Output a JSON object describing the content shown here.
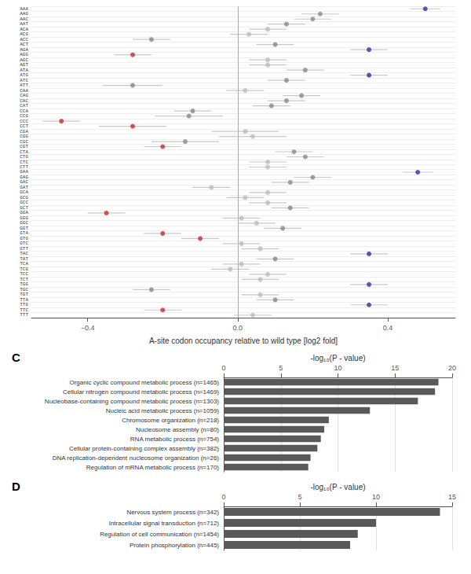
{
  "chart_data": [
    {
      "type": "scatter",
      "xlabel": "A-site codon occupancy relative to wild type [log2 fold]",
      "categories": [
        "AAA",
        "AAG",
        "AAC",
        "AAT",
        "ACA",
        "ACG",
        "ACC",
        "ACT",
        "AGA",
        "AGG",
        "AGC",
        "AGT",
        "ATA",
        "ATG",
        "ATC",
        "ATT",
        "CAA",
        "CAG",
        "CAC",
        "CAT",
        "CCA",
        "CCG",
        "CCC",
        "CCT",
        "CGA",
        "CGG",
        "CGC",
        "CGT",
        "CTA",
        "CTG",
        "CTC",
        "CTT",
        "GAA",
        "GAG",
        "GAC",
        "GAT",
        "GCA",
        "GCG",
        "GCC",
        "GCT",
        "GGA",
        "GGG",
        "GGC",
        "GGT",
        "GTA",
        "GTG",
        "GTC",
        "GTT",
        "TAC",
        "TAT",
        "TCA",
        "TCG",
        "TCC",
        "TCT",
        "TGG",
        "TGC",
        "TGT",
        "TTA",
        "TTG",
        "TTC",
        "TTT"
      ],
      "values": [
        0.5,
        0.22,
        0.2,
        0.13,
        0.08,
        0.03,
        -0.23,
        0.1,
        0.35,
        -0.28,
        0.08,
        0.08,
        0.18,
        0.35,
        0.13,
        -0.28,
        0.02,
        0.17,
        0.13,
        0.09,
        -0.12,
        -0.13,
        -0.47,
        -0.28,
        0.02,
        0.04,
        -0.14,
        -0.2,
        0.15,
        0.18,
        0.08,
        0.08,
        0.48,
        0.2,
        0.14,
        -0.07,
        0.08,
        0.02,
        0.08,
        0.14,
        -0.35,
        0.01,
        0.05,
        0.12,
        -0.2,
        -0.1,
        0.01,
        0.06,
        0.35,
        0.1,
        0.01,
        -0.02,
        0.08,
        0.06,
        0.35,
        -0.23,
        0.06,
        0.1,
        0.35,
        -0.2,
        0.04
      ],
      "errors": [
        0.04,
        0.05,
        0.05,
        0.05,
        0.05,
        0.05,
        0.05,
        0.05,
        0.05,
        0.05,
        0.05,
        0.05,
        0.05,
        0.05,
        0.05,
        0.08,
        0.05,
        0.05,
        0.05,
        0.05,
        0.05,
        0.09,
        0.05,
        0.09,
        0.09,
        0.09,
        0.09,
        0.05,
        0.05,
        0.05,
        0.05,
        0.05,
        0.04,
        0.05,
        0.05,
        0.05,
        0.05,
        0.05,
        0.05,
        0.05,
        0.05,
        0.05,
        0.05,
        0.05,
        0.05,
        0.05,
        0.05,
        0.05,
        0.05,
        0.05,
        0.05,
        0.05,
        0.05,
        0.05,
        0.05,
        0.05,
        0.05,
        0.05,
        0.05,
        0.05,
        0.05
      ],
      "colors": [
        "#3030a0",
        "#888888",
        "#888888",
        "#888888",
        "#bbbbbb",
        "#bbbbbb",
        "#888888",
        "#888888",
        "#3030a0",
        "#c03030",
        "#bbbbbb",
        "#bbbbbb",
        "#888888",
        "#3030a0",
        "#888888",
        "#888888",
        "#bbbbbb",
        "#888888",
        "#888888",
        "#888888",
        "#888888",
        "#888888",
        "#c03030",
        "#c03030",
        "#bbbbbb",
        "#bbbbbb",
        "#888888",
        "#c03030",
        "#888888",
        "#888888",
        "#bbbbbb",
        "#bbbbbb",
        "#3030a0",
        "#888888",
        "#888888",
        "#bbbbbb",
        "#bbbbbb",
        "#bbbbbb",
        "#bbbbbb",
        "#888888",
        "#c03030",
        "#bbbbbb",
        "#bbbbbb",
        "#888888",
        "#c03030",
        "#c03030",
        "#bbbbbb",
        "#bbbbbb",
        "#3030a0",
        "#888888",
        "#bbbbbb",
        "#bbbbbb",
        "#bbbbbb",
        "#bbbbbb",
        "#3030a0",
        "#888888",
        "#bbbbbb",
        "#888888",
        "#3030a0",
        "#c03030",
        "#bbbbbb"
      ],
      "xlim": [
        -0.55,
        0.58
      ],
      "xticks": [
        {
          "value": -0.4,
          "label": "−0.4"
        },
        {
          "value": 0.0,
          "label": "0.0"
        },
        {
          "value": 0.4,
          "label": "0.4"
        }
      ],
      "grid": true
    },
    {
      "type": "bar",
      "orientation": "horizontal",
      "title": "C",
      "xlabel": "-log₁₀(P - value)",
      "categories": [
        "Organic cyclic compound metabolic process (n=1465)",
        "Cellular nitrogen compound metabolic process (n=1469)",
        "Nucleobase-containing compound metabolic process (n=1303)",
        "Nucleic acid metabolic process (n=1059)",
        "Chromosome organization (n=218)",
        "Nucleosome assembly (n=80)",
        "RNA metabolic process (n=754)",
        "Cellular protein-containing complex assembly (n=382)",
        "DNA replication-dependent nucleosome organization (n=26)",
        "Regulation of mRNA metabolic process (n=170)"
      ],
      "values": [
        18.8,
        18.5,
        17.0,
        12.8,
        9.2,
        8.8,
        8.5,
        8.2,
        7.6,
        7.4
      ],
      "color": "#595959",
      "xlim": [
        0,
        20
      ],
      "xticks": [
        0,
        5,
        10,
        15,
        20
      ],
      "grid": true
    },
    {
      "type": "bar",
      "orientation": "horizontal",
      "title": "D",
      "xlabel": "-log₁₀(P - value)",
      "categories": [
        "Nervous system process (n=342)",
        "Intracellular signal transduction (n=712)",
        "Regulation of cell communication (n=1454)",
        "Protein phosphorylation (n=445)"
      ],
      "values": [
        14.2,
        10.0,
        8.8,
        8.3
      ],
      "color": "#595959",
      "xlim": [
        0,
        15
      ],
      "xticks": [
        0,
        5,
        10,
        15
      ],
      "grid": true
    }
  ]
}
